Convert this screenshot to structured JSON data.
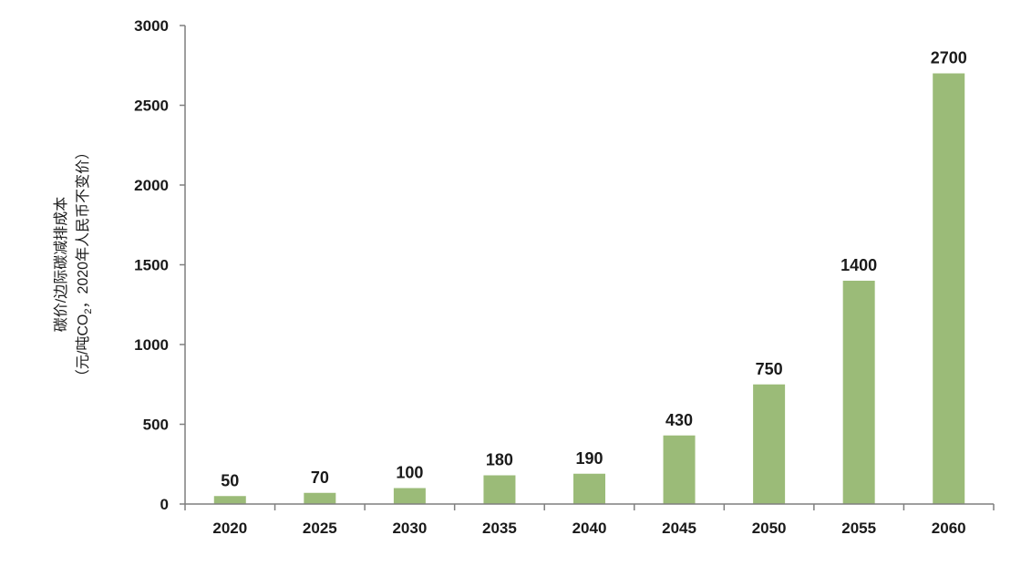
{
  "chart_data": {
    "type": "bar",
    "title": "",
    "xlabel": "",
    "ylabel_line1": "碳价/边际碳减排成本",
    "ylabel_line2_prefix": "（元/吨CO",
    "ylabel_line2_sub": "2",
    "ylabel_line2_suffix": "，2020年人民币不变价）",
    "categories": [
      "2020",
      "2025",
      "2030",
      "2035",
      "2040",
      "2045",
      "2050",
      "2055",
      "2060"
    ],
    "values": [
      50,
      70,
      100,
      180,
      190,
      430,
      750,
      1400,
      2700
    ],
    "ylim": [
      0,
      3000
    ],
    "yticks": [
      0,
      500,
      1000,
      1500,
      2000,
      2500,
      3000
    ],
    "grid": false,
    "bar_color": "#9bbb78",
    "axis_color": "#7f7f7f"
  }
}
